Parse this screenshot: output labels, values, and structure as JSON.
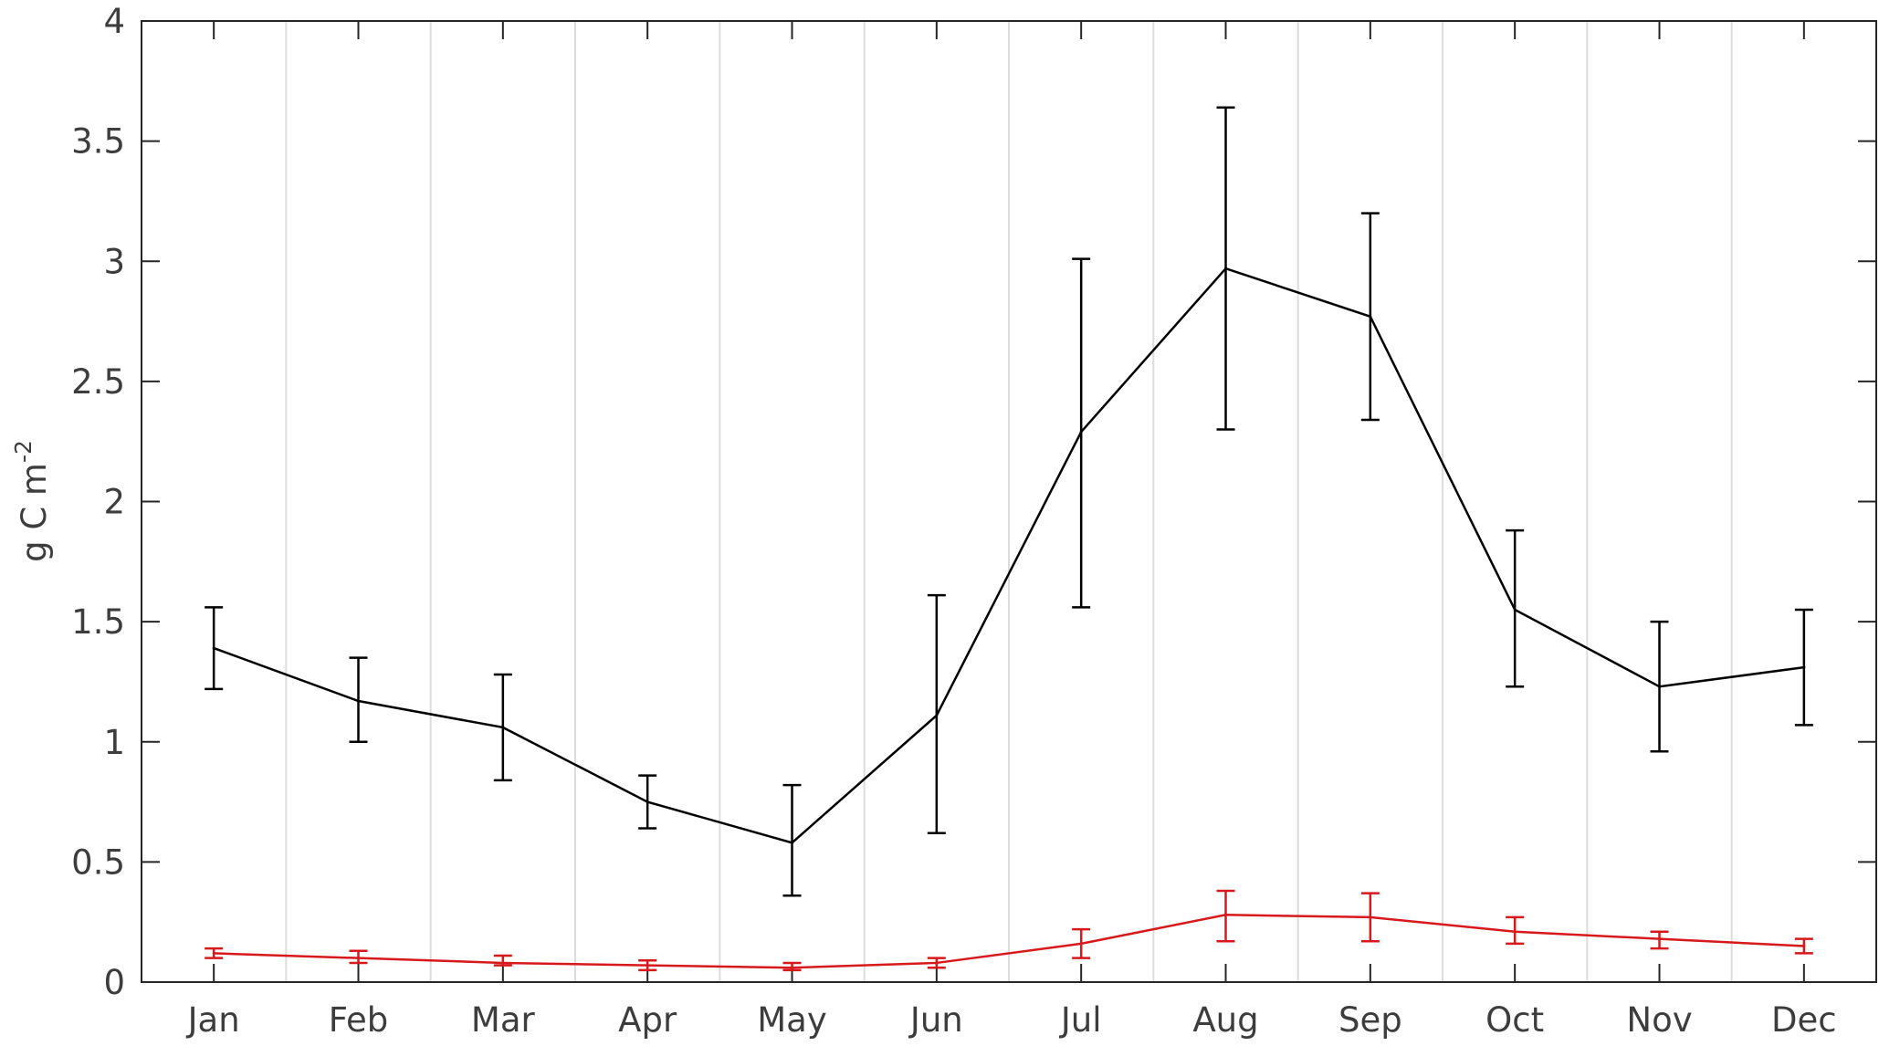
{
  "chart_data": {
    "type": "line",
    "categories": [
      "Jan",
      "Feb",
      "Mar",
      "Apr",
      "May",
      "Jun",
      "Jul",
      "Aug",
      "Sep",
      "Oct",
      "Nov",
      "Dec"
    ],
    "ylabel": "g C m",
    "ylabel_superscript": "-2",
    "ylim": [
      0,
      4
    ],
    "yticks": [
      "0",
      "0.5",
      "1",
      "1.5",
      "2",
      "2.5",
      "3",
      "3.5",
      "4"
    ],
    "grid": "vertical lines between months",
    "series": [
      {
        "color": "#000000",
        "values": [
          1.39,
          1.17,
          1.06,
          0.75,
          0.58,
          1.11,
          2.29,
          2.97,
          2.77,
          1.55,
          1.23,
          1.31
        ],
        "err_low": [
          1.22,
          1.0,
          0.84,
          0.64,
          0.36,
          0.62,
          1.56,
          2.3,
          2.34,
          1.23,
          0.96,
          1.07
        ],
        "err_high": [
          1.56,
          1.35,
          1.28,
          0.86,
          0.82,
          1.61,
          3.01,
          3.64,
          3.2,
          1.88,
          1.5,
          1.55
        ]
      },
      {
        "color": "#d7191c",
        "values": [
          0.12,
          0.1,
          0.08,
          0.07,
          0.06,
          0.08,
          0.16,
          0.28,
          0.27,
          0.21,
          0.18,
          0.15
        ],
        "err_low": [
          0.1,
          0.08,
          0.07,
          0.05,
          0.05,
          0.06,
          0.1,
          0.17,
          0.17,
          0.16,
          0.14,
          0.12
        ],
        "err_high": [
          0.14,
          0.13,
          0.11,
          0.09,
          0.08,
          0.1,
          0.22,
          0.38,
          0.37,
          0.27,
          0.21,
          0.18
        ]
      }
    ]
  }
}
